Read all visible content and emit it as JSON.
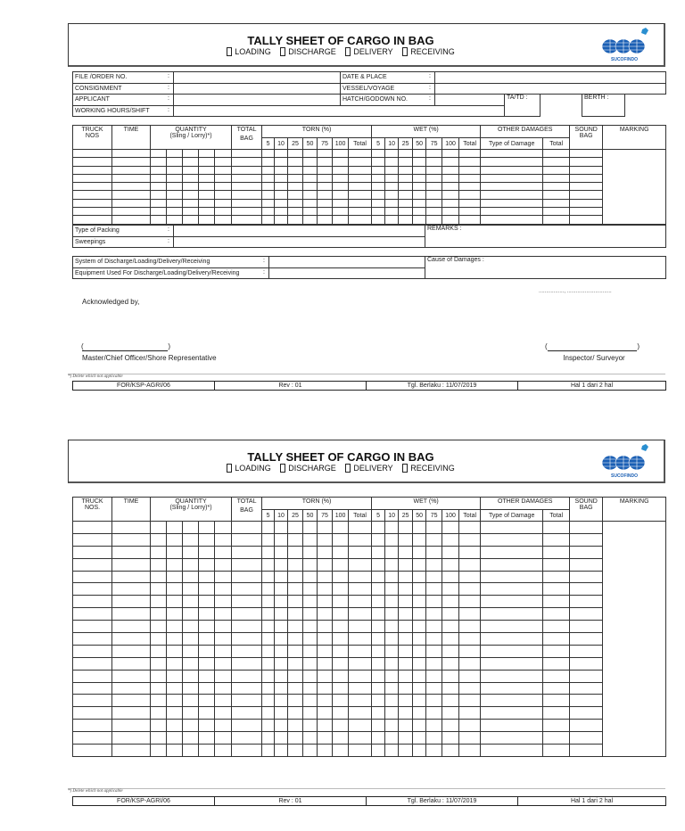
{
  "header": {
    "title": "TALLY SHEET OF CARGO IN BAG",
    "options": [
      "LOADING",
      "DISCHARGE",
      "DELIVERY",
      "RECEIVING"
    ],
    "logo_text": "SUCOFINDO",
    "brand_color": "#1a5fb4"
  },
  "info": {
    "file_order": "FILE /ORDER NO.",
    "consignment": "CONSIGNMENT",
    "applicant": "APPLICANT",
    "working_hours": "WORKING HOURS/SHIFT",
    "date_place": "DATE & PLACE",
    "vessel_voyage": "VESSEL/VOYAGE",
    "hatch_godown": "HATCH/GODOWN NO.",
    "ta_td": "TA/TD  :",
    "berth": "BERTH  :",
    "colon": ":"
  },
  "table": {
    "truck": "TRUCK",
    "nos_1": "NOS",
    "nos_2": "NOS.",
    "time": "TIME",
    "quantity": "QUANTITY",
    "quantity_sub": "(Sling / Lorry)*)",
    "total": "TOTAL",
    "bag": "BAG",
    "torn": "TORN (%)",
    "wet": "WET (%)",
    "pct": [
      "5",
      "10",
      "25",
      "50",
      "75",
      "100",
      "Total"
    ],
    "other_damages": "OTHER DAMAGES",
    "type_of_damage": "Type of Damage",
    "damage_total": "Total",
    "sound": "SOUND",
    "sound_bag": "BAG",
    "marking": "MARKING"
  },
  "bottom": {
    "type_of_packing": "Type of Packing",
    "sweepings": "Sweepings",
    "remarks": "REMARKS :",
    "system": "System of Discharge/Loading/Delivery/Receiving",
    "equipment": "Equipment Used For Discharge/Loading/Delivery/Receiving",
    "cause": "Cause of Damages :"
  },
  "signature": {
    "dots": "................., ..............................",
    "acknowledged": "Acknowledged by,",
    "blank": "(                                   )",
    "master": "Master/Chief Officer/Shore Representative",
    "inspector": "Inspector/ Surveyor"
  },
  "footer": {
    "note": "*) Delete which not applicable",
    "form_no": "FOR/KSP-AGRI/06",
    "rev": "Rev : 01",
    "effective": "Tgl. Berlaku : 11/07/2019",
    "page": "Hal 1 dari 2  hal"
  }
}
